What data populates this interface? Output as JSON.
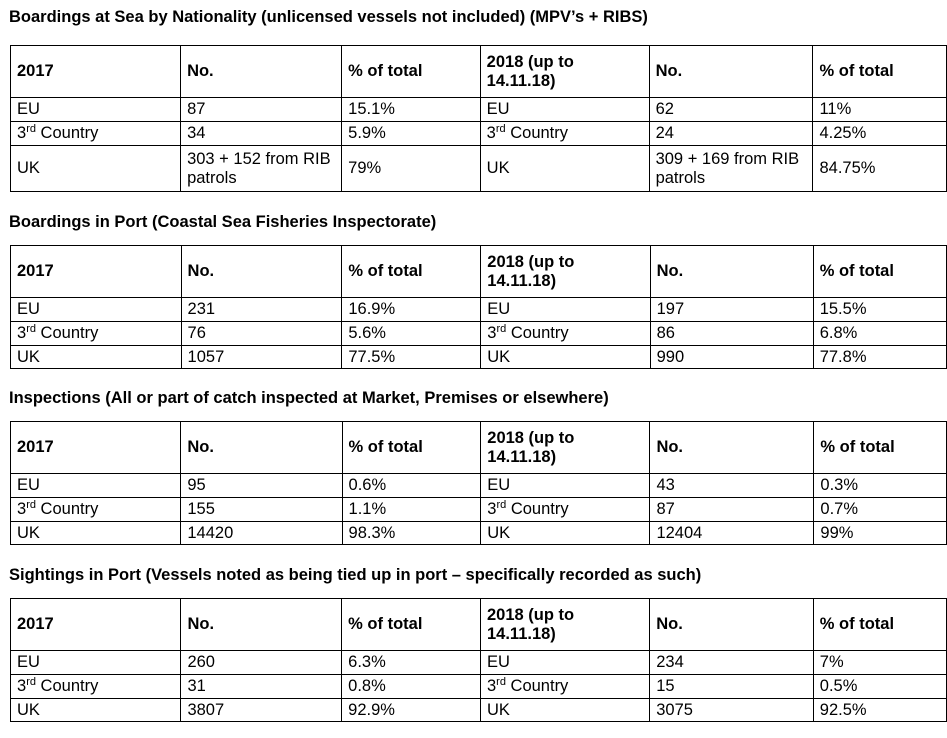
{
  "sections": [
    {
      "title": "Boardings at Sea by Nationality (unlicensed vessels not included) (MPV’s + RIBS)",
      "header": [
        "2017",
        "No.",
        "% of total",
        "2018 (up to 14.11.18)",
        "No.",
        "% of total"
      ],
      "rows": [
        {
          "n1": "EU",
          "v1": "87",
          "p1": "15.1%",
          "n2": "EU",
          "v2": "62",
          "p2": "11%"
        },
        {
          "n1": "3rd Country",
          "v1": "34",
          "p1": "5.9%",
          "n2": "3rd Country",
          "v2": "24",
          "p2": "4.25%"
        },
        {
          "n1": "UK",
          "v1": "303 + 152 from RIB patrols",
          "p1": "79%",
          "n2": "UK",
          "v2": "309 + 169 from RIB patrols",
          "p2": "84.75%"
        }
      ]
    },
    {
      "title": "Boardings in Port (Coastal Sea Fisheries Inspectorate)",
      "header": [
        "2017",
        "No.",
        "% of total",
        "2018 (up to 14.11.18)",
        "No.",
        "% of total"
      ],
      "rows": [
        {
          "n1": "EU",
          "v1": "231",
          "p1": "16.9%",
          "n2": "EU",
          "v2": "197",
          "p2": "15.5%"
        },
        {
          "n1": "3rd Country",
          "v1": "76",
          "p1": "5.6%",
          "n2": "3rd Country",
          "v2": "86",
          "p2": "6.8%"
        },
        {
          "n1": "UK",
          "v1": "1057",
          "p1": "77.5%",
          "n2": "UK",
          "v2": "990",
          "p2": "77.8%"
        }
      ]
    },
    {
      "title": "Inspections (All or part of catch inspected at Market, Premises or elsewhere)",
      "header": [
        "2017",
        "No.",
        "% of total",
        "2018 (up to 14.11.18)",
        "No.",
        "% of total"
      ],
      "rows": [
        {
          "n1": "EU",
          "v1": "95",
          "p1": "0.6%",
          "n2": "EU",
          "v2": "43",
          "p2": "0.3%"
        },
        {
          "n1": "3rd Country",
          "v1": "155",
          "p1": "1.1%",
          "n2": "3rd Country",
          "v2": "87",
          "p2": "0.7%"
        },
        {
          "n1": "UK",
          "v1": "14420",
          "p1": "98.3%",
          "n2": "UK",
          "v2": "12404",
          "p2": "99%"
        }
      ]
    },
    {
      "title": "Sightings in Port (Vessels noted as being tied up in port – specifically recorded as such)",
      "header": [
        "2017",
        "No.",
        "% of total",
        "2018 (up to 14.11.18)",
        "No.",
        "% of total"
      ],
      "rows": [
        {
          "n1": "EU",
          "v1": "260",
          "p1": "6.3%",
          "n2": "EU",
          "v2": "234",
          "p2": "7%"
        },
        {
          "n1": "3rd Country",
          "v1": "31",
          "p1": "0.8%",
          "n2": "3rd Country",
          "v2": "15",
          "p2": "0.5%"
        },
        {
          "n1": "UK",
          "v1": "3807",
          "p1": "92.9%",
          "n2": "UK",
          "v2": "3075",
          "p2": "92.5%"
        }
      ]
    }
  ]
}
